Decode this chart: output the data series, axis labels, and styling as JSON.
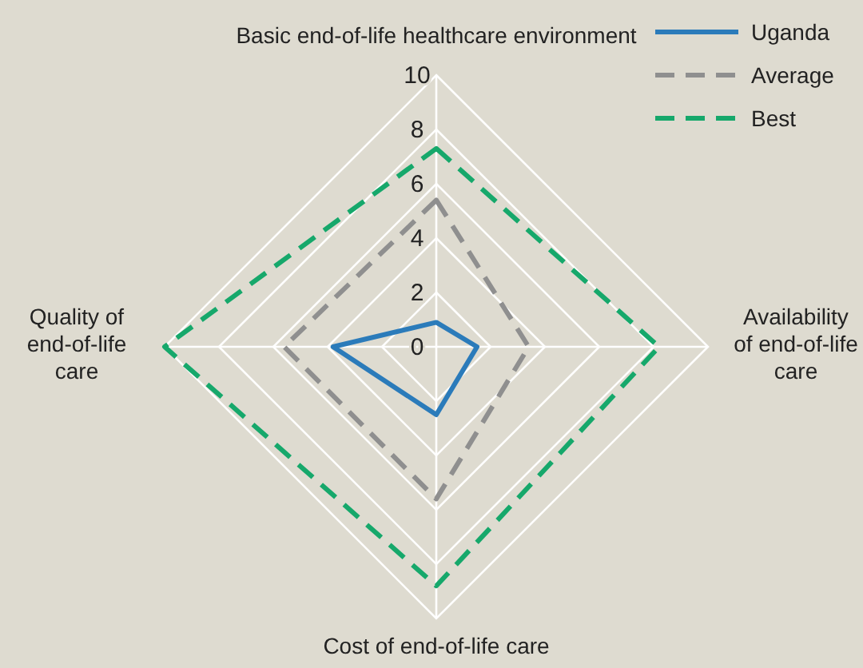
{
  "chart_data": {
    "type": "radar",
    "categories": [
      "Basic end-of-life healthcare environment",
      "Availability of end-of-life care",
      "Cost of end-of-life care",
      "Quality of end-of-life care"
    ],
    "series": [
      {
        "name": "Uganda",
        "color": "#2b7bba",
        "values": [
          0.9,
          1.5,
          2.5,
          3.8
        ],
        "line_style": "solid"
      },
      {
        "name": "Average",
        "color": "#8f8f8f",
        "values": [
          5.4,
          3.4,
          5.6,
          5.6
        ],
        "line_style": "dashed"
      },
      {
        "name": "Best",
        "color": "#16a86b",
        "values": [
          7.3,
          8.2,
          8.8,
          10
        ],
        "line_style": "dashed"
      }
    ],
    "ylim": [
      0,
      10
    ],
    "yticks": [
      0,
      2,
      4,
      6,
      8,
      10
    ],
    "grid": true,
    "legend": "top right"
  }
}
